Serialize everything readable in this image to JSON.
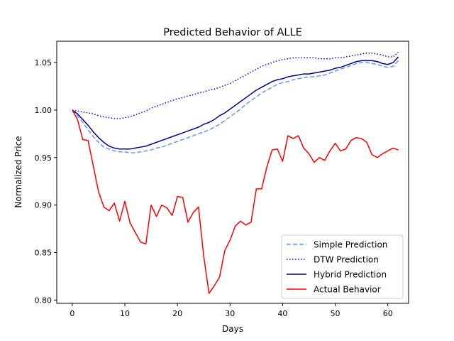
{
  "chart_data": {
    "type": "line",
    "title": "Predicted Behavior of ALLE",
    "xlabel": "Days",
    "ylabel": "Normalized Price",
    "xlim": [
      -2.95,
      63.95
    ],
    "ylim": [
      0.7965,
      1.0725
    ],
    "xticks": [
      0,
      10,
      20,
      30,
      40,
      50,
      60
    ],
    "yticks": [
      0.8,
      0.85,
      0.9,
      0.95,
      1.0,
      1.05
    ],
    "ytick_labels": [
      "0.80",
      "0.85",
      "0.90",
      "0.95",
      "1.00",
      "1.05"
    ],
    "grid": false,
    "legend": "lower-right",
    "x": [
      0,
      1,
      2,
      3,
      4,
      5,
      6,
      7,
      8,
      9,
      10,
      11,
      12,
      13,
      14,
      15,
      16,
      17,
      18,
      19,
      20,
      21,
      22,
      23,
      24,
      25,
      26,
      27,
      28,
      29,
      30,
      31,
      32,
      33,
      34,
      35,
      36,
      37,
      38,
      39,
      40,
      41,
      42,
      43,
      44,
      45,
      46,
      47,
      48,
      49,
      50,
      51,
      52,
      53,
      54,
      55,
      56,
      57,
      58,
      59,
      60,
      61,
      62
    ],
    "series": [
      {
        "name": "Simple Prediction",
        "color": "#6495ed",
        "style": "dashed",
        "values": [
          1.0,
          0.994,
          0.987,
          0.979,
          0.972,
          0.966,
          0.961,
          0.959,
          0.957,
          0.956,
          0.956,
          0.955,
          0.955,
          0.956,
          0.957,
          0.958,
          0.96,
          0.961,
          0.963,
          0.965,
          0.967,
          0.969,
          0.971,
          0.973,
          0.975,
          0.977,
          0.979,
          0.982,
          0.985,
          0.989,
          0.993,
          0.997,
          1.001,
          1.006,
          1.01,
          1.014,
          1.018,
          1.021,
          1.024,
          1.027,
          1.029,
          1.03,
          1.032,
          1.033,
          1.034,
          1.035,
          1.035,
          1.036,
          1.037,
          1.039,
          1.041,
          1.043,
          1.045,
          1.047,
          1.049,
          1.05,
          1.05,
          1.049,
          1.048,
          1.046,
          1.045,
          1.046,
          1.052
        ]
      },
      {
        "name": "DTW Prediction",
        "color": "#0000ff",
        "style": "dotted",
        "values": [
          1.0,
          0.999,
          0.998,
          0.997,
          0.996,
          0.994,
          0.993,
          0.992,
          0.991,
          0.991,
          0.992,
          0.993,
          0.995,
          0.997,
          0.999,
          1.002,
          1.004,
          1.006,
          1.008,
          1.01,
          1.012,
          1.013,
          1.015,
          1.016,
          1.018,
          1.019,
          1.021,
          1.022,
          1.024,
          1.026,
          1.028,
          1.031,
          1.034,
          1.037,
          1.04,
          1.043,
          1.046,
          1.048,
          1.05,
          1.052,
          1.053,
          1.054,
          1.055,
          1.055,
          1.055,
          1.055,
          1.055,
          1.054,
          1.054,
          1.054,
          1.055,
          1.055,
          1.056,
          1.057,
          1.058,
          1.059,
          1.06,
          1.06,
          1.059,
          1.058,
          1.056,
          1.056,
          1.061
        ]
      },
      {
        "name": "Hybrid Prediction",
        "color": "#00008b",
        "style": "solid",
        "values": [
          1.0,
          0.996,
          0.99,
          0.984,
          0.977,
          0.971,
          0.966,
          0.962,
          0.96,
          0.959,
          0.959,
          0.959,
          0.96,
          0.961,
          0.962,
          0.964,
          0.966,
          0.968,
          0.97,
          0.972,
          0.974,
          0.976,
          0.978,
          0.98,
          0.982,
          0.985,
          0.987,
          0.99,
          0.994,
          0.997,
          1.001,
          1.005,
          1.009,
          1.013,
          1.017,
          1.021,
          1.024,
          1.027,
          1.03,
          1.032,
          1.033,
          1.035,
          1.036,
          1.037,
          1.038,
          1.038,
          1.039,
          1.04,
          1.041,
          1.042,
          1.044,
          1.045,
          1.047,
          1.049,
          1.051,
          1.052,
          1.052,
          1.052,
          1.051,
          1.049,
          1.048,
          1.05,
          1.056
        ]
      },
      {
        "name": "Actual Behavior",
        "color": "#ff0000",
        "style": "solid",
        "values": [
          1.0,
          0.99,
          0.969,
          0.968,
          0.941,
          0.914,
          0.898,
          0.894,
          0.902,
          0.883,
          0.904,
          0.881,
          0.871,
          0.861,
          0.859,
          0.9,
          0.888,
          0.9,
          0.897,
          0.889,
          0.909,
          0.908,
          0.882,
          0.892,
          0.898,
          0.846,
          0.807,
          0.815,
          0.824,
          0.852,
          0.863,
          0.878,
          0.883,
          0.879,
          0.882,
          0.917,
          0.917,
          0.94,
          0.958,
          0.959,
          0.946,
          0.973,
          0.97,
          0.973,
          0.96,
          0.954,
          0.945,
          0.95,
          0.947,
          0.957,
          0.965,
          0.957,
          0.959,
          0.968,
          0.971,
          0.97,
          0.966,
          0.953,
          0.95,
          0.954,
          0.957,
          0.96,
          0.958
        ]
      }
    ]
  }
}
